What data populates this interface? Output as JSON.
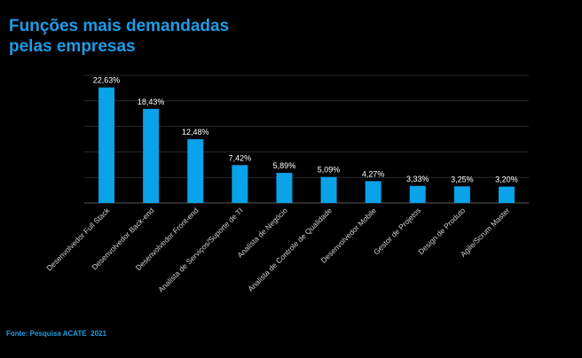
{
  "header": {
    "title_line1": "Funções mais demandadas",
    "title_line2": "pelas empresas"
  },
  "footer": {
    "source": "Fonte: Pesquisa ACATE  2021"
  },
  "colors": {
    "bar": "#0aa2e8",
    "title": "#1e9ce6",
    "background": "#000000",
    "gridline": "#2b2b2b"
  },
  "chart_data": {
    "type": "bar",
    "title": "Funções mais demandadas pelas empresas",
    "xlabel": "",
    "ylabel": "",
    "ylim": [
      0,
      25
    ],
    "grid": true,
    "categories": [
      "Desenvolvedor Full Stack",
      "Desenvolvedor Back-end",
      "Desenvolvedor Front-end",
      "Analista de Serviços/Suporte de TI",
      "Analista de Negócio",
      "Analista de Controle de Qualidade",
      "Desenvolvedor Mobile",
      "Gestor de Projetos",
      "Design de Produto",
      "Agile/Scrum Master"
    ],
    "values": [
      22.63,
      18.43,
      12.48,
      7.42,
      5.89,
      5.09,
      4.27,
      3.33,
      3.25,
      3.2
    ],
    "value_labels": [
      "22,63%",
      "18,43%",
      "12,48%",
      "7,42%",
      "5,89%",
      "5,09%",
      "4,27%",
      "3,33%",
      "3,25%",
      "3,20%"
    ]
  }
}
